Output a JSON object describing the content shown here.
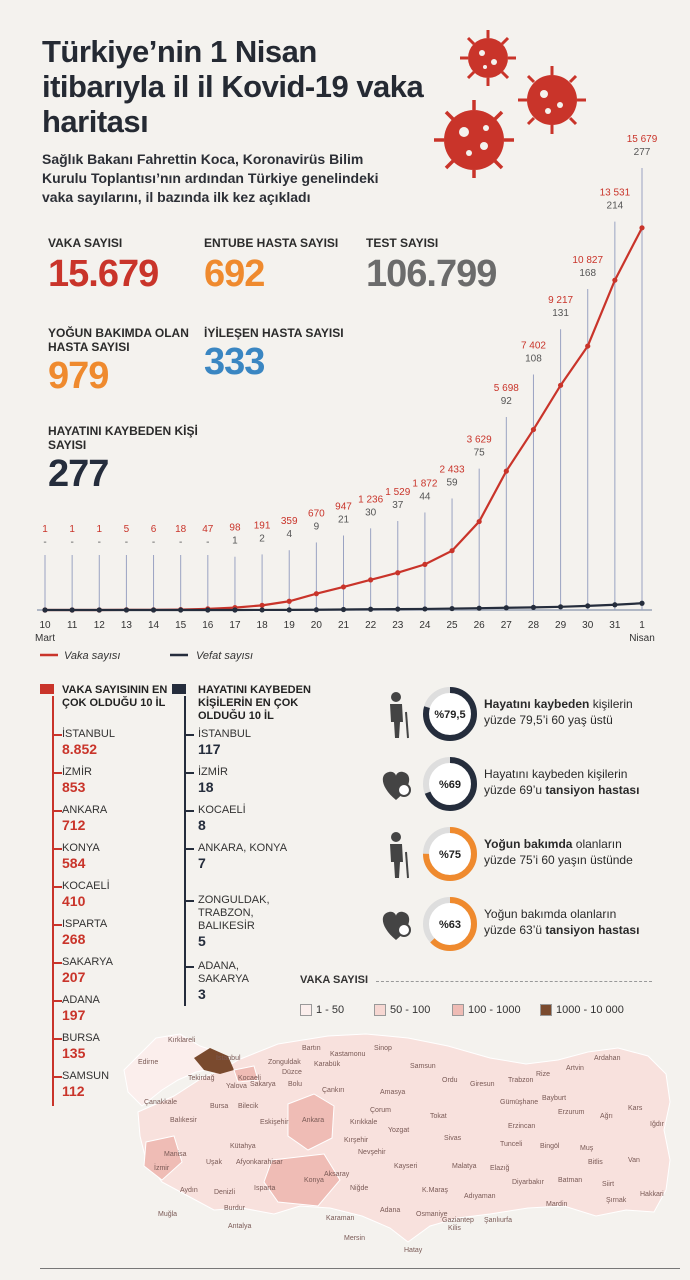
{
  "title": "Türkiye’nin 1 Nisan itibarıyla il il Kovid-19 vaka haritası",
  "subtitle": "Sağlık Bakanı Fahrettin Koca, Koronavirüs Bilim Kurulu Toplantısı’nın ardından Türkiye genelindeki vaka sayılarını, il bazında ilk kez açıkladı",
  "colors": {
    "red": "#c9342a",
    "orange": "#ef8a2e",
    "gray": "#6b6b6b",
    "blue": "#3a86c2",
    "navy": "#252d3c"
  },
  "stats": {
    "cases": {
      "label": "VAKA SAYISI",
      "value": "15.679"
    },
    "intubated": {
      "label": "ENTUBE HASTA SAYISI",
      "value": "692"
    },
    "tests": {
      "label": "TEST SAYISI",
      "value": "106.799"
    },
    "icu": {
      "label": "YOĞUN BAKIMDA OLAN HASTA SAYISI",
      "value": "979"
    },
    "recovered": {
      "label": "İYİLEŞEN HASTA SAYISI",
      "value": "333"
    },
    "deaths": {
      "label": "HAYATINI KAYBEDEN KİŞİ SAYISI",
      "value": "277"
    }
  },
  "chart_data": {
    "type": "line",
    "title": "",
    "categories": [
      "10",
      "11",
      "12",
      "13",
      "14",
      "15",
      "16",
      "17",
      "18",
      "19",
      "20",
      "21",
      "22",
      "23",
      "24",
      "25",
      "26",
      "27",
      "28",
      "29",
      "30",
      "31",
      "1"
    ],
    "month_labels": {
      "first": "Mart",
      "last": "Nisan"
    },
    "case_labels": [
      "1",
      "1",
      "1",
      "5",
      "6",
      "18",
      "47",
      "98",
      "191",
      "359",
      "670",
      "947",
      "1 236",
      "1 529",
      "1 872",
      "2 433",
      "3 629",
      "5 698",
      "7 402",
      "9 217",
      "10 827",
      "13 531",
      "15 679"
    ],
    "death_labels": [
      "-",
      "-",
      "-",
      "-",
      "-",
      "-",
      "-",
      "1",
      "2",
      "4",
      "9",
      "21",
      "30",
      "37",
      "44",
      "59",
      "75",
      "92",
      "108",
      "131",
      "168",
      "214",
      "277"
    ],
    "series": [
      {
        "name": "Vaka sayısı",
        "values": [
          1,
          1,
          1,
          5,
          6,
          18,
          47,
          98,
          191,
          359,
          670,
          947,
          1236,
          1529,
          1872,
          2433,
          3629,
          5698,
          7402,
          9217,
          10827,
          13531,
          15679
        ],
        "color": "#c9342a"
      },
      {
        "name": "Vefat sayısı",
        "values": [
          0,
          0,
          0,
          0,
          0,
          0,
          0,
          1,
          2,
          4,
          9,
          21,
          30,
          37,
          44,
          59,
          75,
          92,
          108,
          131,
          168,
          214,
          277
        ],
        "color": "#252d3c"
      }
    ],
    "ylim": [
      0,
      16000
    ]
  },
  "cases_list": {
    "heading": "VAKA SAYISININ EN ÇOK OLDUĞU 10 İL",
    "items": [
      {
        "name": "İSTANBUL",
        "value": "8.852"
      },
      {
        "name": "İZMİR",
        "value": "853"
      },
      {
        "name": "ANKARA",
        "value": "712"
      },
      {
        "name": "KONYA",
        "value": "584"
      },
      {
        "name": "KOCAELİ",
        "value": "410"
      },
      {
        "name": "ISPARTA",
        "value": "268"
      },
      {
        "name": "SAKARYA",
        "value": "207"
      },
      {
        "name": "ADANA",
        "value": "197"
      },
      {
        "name": "BURSA",
        "value": "135"
      },
      {
        "name": "SAMSUN",
        "value": "112"
      }
    ]
  },
  "deaths_list": {
    "heading": "HAYATINI KAYBEDEN KİŞİLERİN EN ÇOK OLDUĞU 10 İL",
    "items": [
      {
        "name": "İSTANBUL",
        "value": "117"
      },
      {
        "name": "İZMİR",
        "value": "18"
      },
      {
        "name": "KOCAELİ",
        "value": "8"
      },
      {
        "name": "ANKARA, KONYA",
        "value": "7"
      },
      {
        "name": "ZONGULDAK, TRABZON, BALIKESİR",
        "value": "5"
      },
      {
        "name": "ADANA, SAKARYA",
        "value": "3"
      }
    ]
  },
  "facts": [
    {
      "percent": "%79,5",
      "bold": "Hayatını kaybeden",
      "rest1": " kişilerin",
      "line2": "yüzde 79,5’i 60 yaş üstü",
      "bold2": "",
      "fraction": 0.795,
      "color": "#252d3c",
      "icon": "elderly-person-icon"
    },
    {
      "percent": "%69",
      "bold": "",
      "rest1": "Hayatını kaybeden kişilerin",
      "line2": "yüzde 69’u ",
      "bold2": "tansiyon hastası",
      "fraction": 0.69,
      "color": "#252d3c",
      "icon": "heart-pressure-icon"
    },
    {
      "percent": "%75",
      "bold": "Yoğun bakımda",
      "rest1": " olanların",
      "line2": "yüzde 75’i 60 yaşın üstünde",
      "bold2": "",
      "fraction": 0.75,
      "color": "#ef8a2e",
      "icon": "elderly-person-icon"
    },
    {
      "percent": "%63",
      "bold": "",
      "rest1": "Yoğun bakımda olanların",
      "line2": "yüzde 63’ü ",
      "bold2": "tansiyon hastası",
      "fraction": 0.63,
      "color": "#ef8a2e",
      "icon": "heart-pressure-icon"
    }
  ],
  "map_legend": {
    "title": "VAKA SAYISI",
    "items": [
      {
        "label": "1 - 50",
        "color": "#fbeeec"
      },
      {
        "label": "50 - 100",
        "color": "#f6d7d2"
      },
      {
        "label": "100 - 1000",
        "color": "#efbcb5"
      },
      {
        "label": "1000 - 10 000",
        "color": "#7a4a2e"
      }
    ]
  },
  "map_labels": [
    "Kırklareli",
    "Edirne",
    "İstanbul",
    "Bartın",
    "Kastamonu",
    "Sinop",
    "Zonguldak",
    "Karabük",
    "Tekirdağ",
    "Kocaeli",
    "Düzce",
    "Yalova",
    "Sakarya",
    "Bolu",
    "Samsun",
    "Çankırı",
    "Amasya",
    "Ordu",
    "Giresun",
    "Trabzon",
    "Rize",
    "Artvin",
    "Ardahan",
    "Çanakkale",
    "Bursa",
    "Bilecik",
    "Balıkesir",
    "Ankara",
    "Çorum",
    "Tokat",
    "Bayburt",
    "Gümüşhane",
    "Erzurum",
    "Ağrı",
    "Kars",
    "Iğdır",
    "Eskişehir",
    "Kırıkkale",
    "Yozgat",
    "Sivas",
    "Erzincan",
    "Tunceli",
    "Bingöl",
    "Muş",
    "Manisa",
    "Kütahya",
    "Kırşehir",
    "Nevşehir",
    "Kayseri",
    "Malatya",
    "Elazığ",
    "Bitlis",
    "Van",
    "İzmir",
    "Uşak",
    "Afyonkarahisar",
    "Aksaray",
    "Diyarbakır",
    "Batman",
    "Siirt",
    "Aydın",
    "Denizli",
    "Isparta",
    "Konya",
    "Niğde",
    "K.Maraş",
    "Adıyaman",
    "Şırnak",
    "Hakkari",
    "Muğla",
    "Burdur",
    "Antalya",
    "Karaman",
    "Adana",
    "Osmaniye",
    "Gaziantep",
    "Şanlıurfa",
    "Mardin",
    "Mersin",
    "Kilis",
    "Hatay"
  ]
}
